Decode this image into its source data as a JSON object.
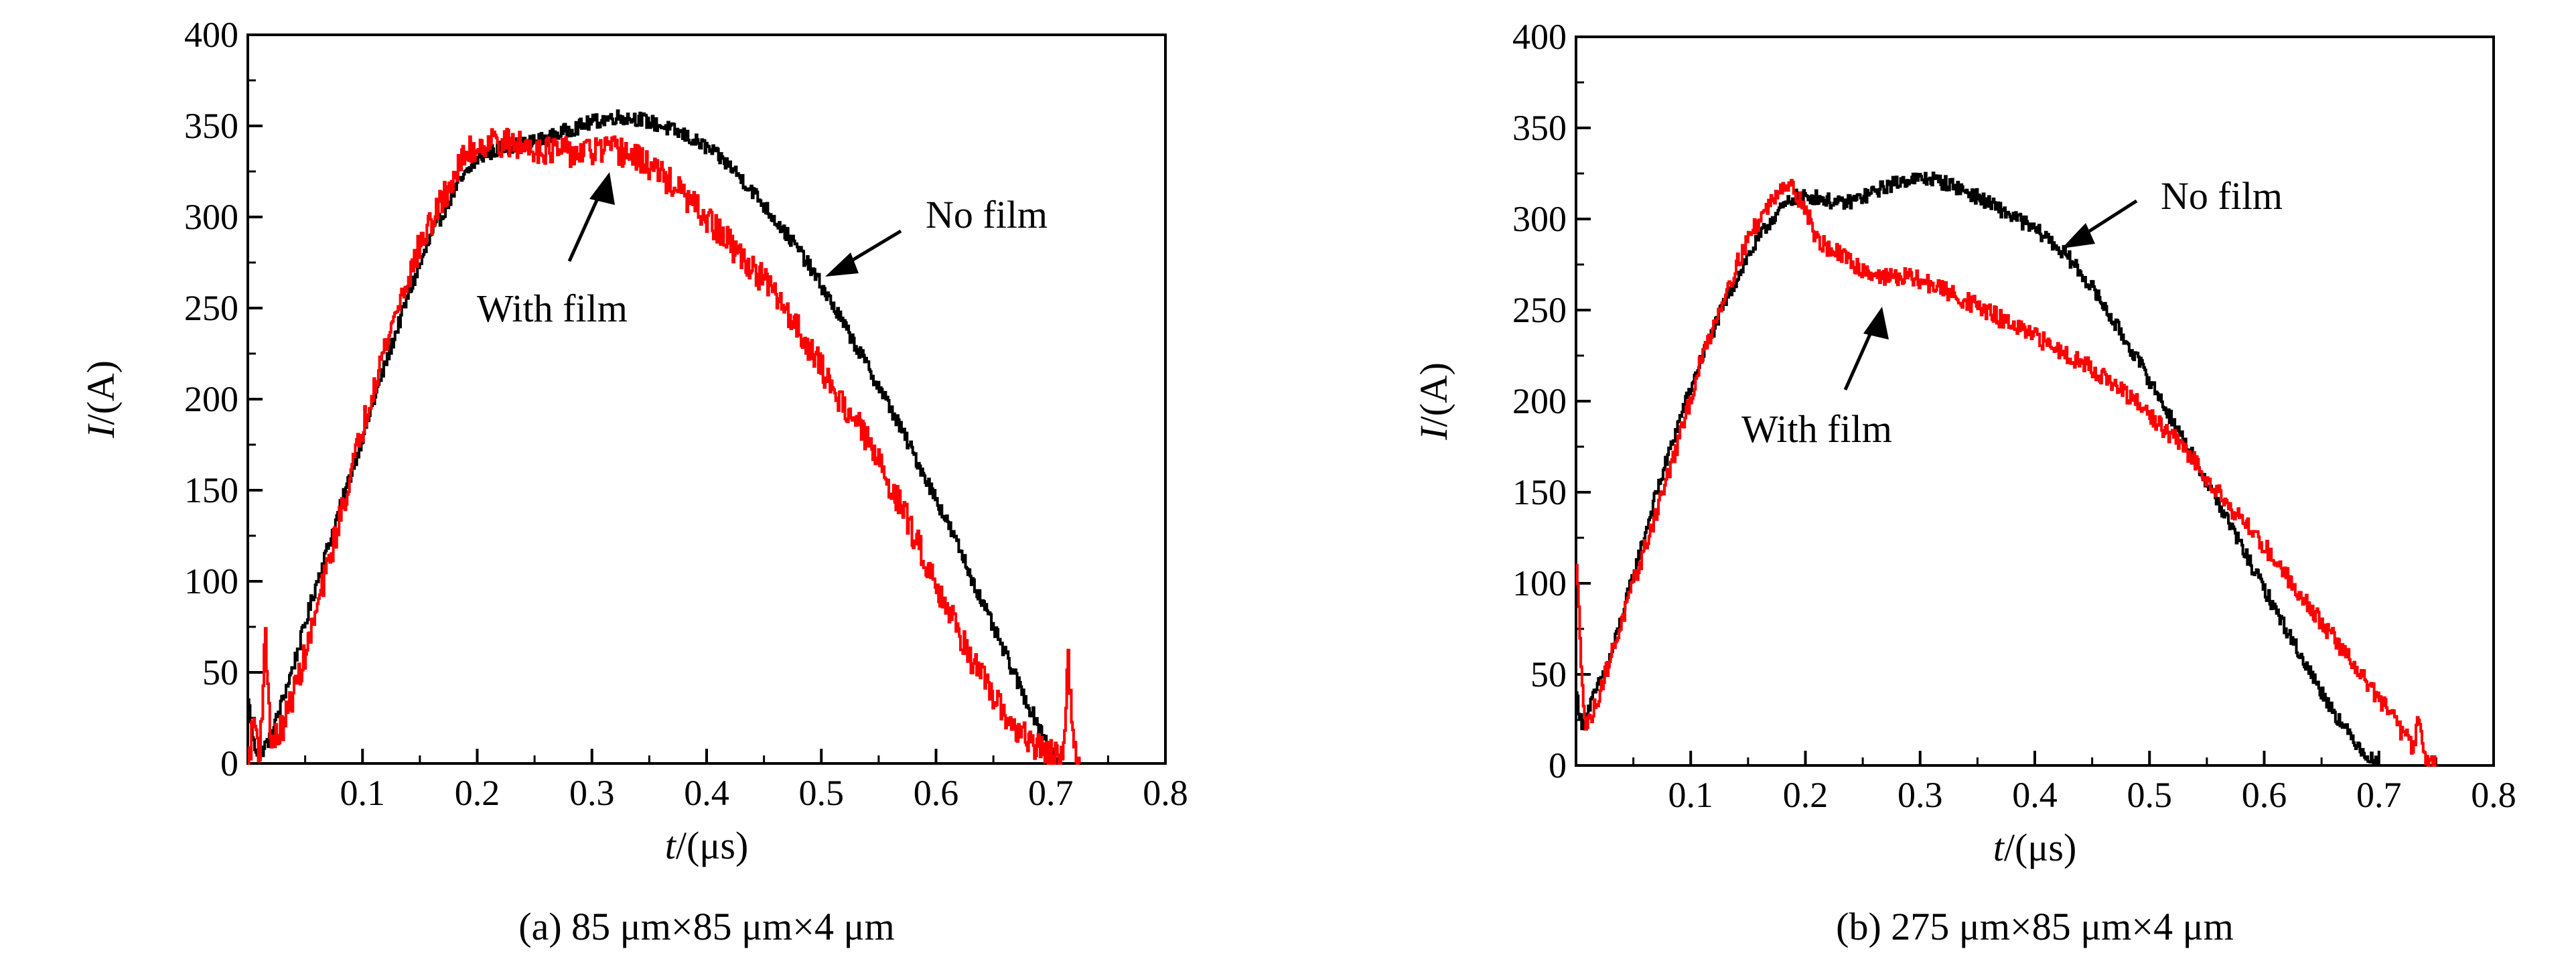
{
  "chart_data": [
    {
      "type": "line",
      "caption": "(a) 85 μm×85 μm×4 μm",
      "xlabel": "t/(μs)",
      "ylabel": "I/(A)",
      "xlim": [
        0,
        0.8
      ],
      "ylim": [
        0,
        400
      ],
      "xticks": [
        0.1,
        0.2,
        0.3,
        0.4,
        0.5,
        0.6,
        0.7,
        0.8
      ],
      "yticks": [
        0,
        50,
        100,
        150,
        200,
        250,
        300,
        350,
        400
      ],
      "xtick_labels": [
        "0.1",
        "0.2",
        "0.3",
        "0.4",
        "0.5",
        "0.6",
        "0.7",
        "0.8"
      ],
      "ytick_labels": [
        "0",
        "50",
        "100",
        "150",
        "200",
        "250",
        "300",
        "350",
        "400"
      ],
      "series": [
        {
          "name": "No film",
          "color": "#000000",
          "noise": 4,
          "x": [
            0,
            0.005,
            0.01,
            0.02,
            0.04,
            0.06,
            0.08,
            0.1,
            0.12,
            0.14,
            0.16,
            0.18,
            0.2,
            0.22,
            0.24,
            0.26,
            0.28,
            0.3,
            0.32,
            0.34,
            0.36,
            0.38,
            0.4,
            0.42,
            0.44,
            0.46,
            0.48,
            0.5,
            0.52,
            0.54,
            0.56,
            0.58,
            0.6,
            0.62,
            0.64,
            0.66,
            0.68,
            0.7,
            0.705
          ],
          "y": [
            35,
            10,
            5,
            15,
            55,
            100,
            140,
            180,
            220,
            258,
            290,
            315,
            332,
            338,
            340,
            343,
            348,
            352,
            355,
            354,
            350,
            345,
            338,
            328,
            314,
            298,
            282,
            262,
            240,
            218,
            195,
            170,
            145,
            118,
            88,
            60,
            32,
            8,
            0
          ]
        },
        {
          "name": "With film",
          "color": "#ff0000",
          "noise": 8,
          "x": [
            0,
            0.005,
            0.01,
            0.015,
            0.02,
            0.03,
            0.05,
            0.07,
            0.09,
            0.11,
            0.13,
            0.15,
            0.17,
            0.19,
            0.21,
            0.23,
            0.25,
            0.27,
            0.29,
            0.31,
            0.33,
            0.35,
            0.37,
            0.39,
            0.41,
            0.43,
            0.45,
            0.47,
            0.49,
            0.51,
            0.53,
            0.55,
            0.57,
            0.59,
            0.61,
            0.63,
            0.65,
            0.67,
            0.69,
            0.7,
            0.71,
            0.715,
            0.72,
            0.725
          ],
          "y": [
            0,
            25,
            5,
            70,
            10,
            20,
            60,
            110,
            160,
            210,
            250,
            285,
            310,
            335,
            342,
            340,
            338,
            336,
            335,
            337,
            335,
            328,
            318,
            305,
            292,
            278,
            265,
            248,
            228,
            205,
            188,
            165,
            140,
            112,
            85,
            58,
            35,
            18,
            8,
            5,
            2,
            55,
            5,
            0
          ]
        }
      ],
      "annotations": [
        {
          "text": "With film",
          "series": "With film"
        },
        {
          "text": "No film",
          "series": "No film"
        }
      ]
    },
    {
      "type": "line",
      "caption": "(b) 275 μm×85 μm×4 μm",
      "xlabel": "t/(μs)",
      "ylabel": "I/(A)",
      "xlim": [
        0,
        0.8
      ],
      "ylim": [
        0,
        400
      ],
      "xticks": [
        0.1,
        0.2,
        0.3,
        0.4,
        0.5,
        0.6,
        0.7,
        0.8
      ],
      "yticks": [
        0,
        50,
        100,
        150,
        200,
        250,
        300,
        350,
        400
      ],
      "xtick_labels": [
        "0.1",
        "0.2",
        "0.3",
        "0.4",
        "0.5",
        "0.6",
        "0.7",
        "0.8"
      ],
      "ytick_labels": [
        "0",
        "50",
        "100",
        "150",
        "200",
        "250",
        "300",
        "350",
        "400"
      ],
      "series": [
        {
          "name": "No film",
          "color": "#000000",
          "noise": 4,
          "x": [
            0,
            0.005,
            0.01,
            0.03,
            0.05,
            0.07,
            0.09,
            0.11,
            0.13,
            0.15,
            0.17,
            0.19,
            0.21,
            0.23,
            0.25,
            0.27,
            0.29,
            0.31,
            0.33,
            0.35,
            0.37,
            0.39,
            0.41,
            0.43,
            0.45,
            0.47,
            0.49,
            0.51,
            0.53,
            0.55,
            0.57,
            0.59,
            0.61,
            0.63,
            0.65,
            0.67,
            0.69,
            0.7
          ],
          "y": [
            40,
            20,
            30,
            60,
            105,
            150,
            190,
            225,
            255,
            280,
            300,
            312,
            312,
            308,
            312,
            318,
            322,
            322,
            318,
            312,
            305,
            298,
            290,
            278,
            262,
            242,
            222,
            200,
            178,
            155,
            132,
            108,
            85,
            62,
            40,
            20,
            5,
            0
          ]
        },
        {
          "name": "With film",
          "color": "#ff0000",
          "noise": 5,
          "x": [
            0,
            0.004,
            0.008,
            0.015,
            0.03,
            0.05,
            0.07,
            0.09,
            0.11,
            0.13,
            0.15,
            0.17,
            0.18,
            0.19,
            0.2,
            0.21,
            0.23,
            0.25,
            0.27,
            0.29,
            0.31,
            0.33,
            0.35,
            0.37,
            0.39,
            0.41,
            0.43,
            0.45,
            0.47,
            0.49,
            0.51,
            0.53,
            0.55,
            0.57,
            0.59,
            0.61,
            0.63,
            0.65,
            0.67,
            0.69,
            0.71,
            0.72,
            0.73,
            0.735,
            0.74,
            0.75
          ],
          "y": [
            110,
            60,
            20,
            30,
            60,
            100,
            140,
            180,
            225,
            260,
            290,
            310,
            320,
            316,
            305,
            288,
            280,
            272,
            268,
            268,
            264,
            258,
            252,
            245,
            238,
            232,
            225,
            218,
            208,
            198,
            186,
            174,
            158,
            142,
            128,
            112,
            95,
            78,
            62,
            45,
            28,
            18,
            10,
            28,
            5,
            0
          ]
        }
      ],
      "annotations": [
        {
          "text": "No film",
          "series": "No film"
        },
        {
          "text": "With film",
          "series": "With film"
        }
      ]
    }
  ]
}
